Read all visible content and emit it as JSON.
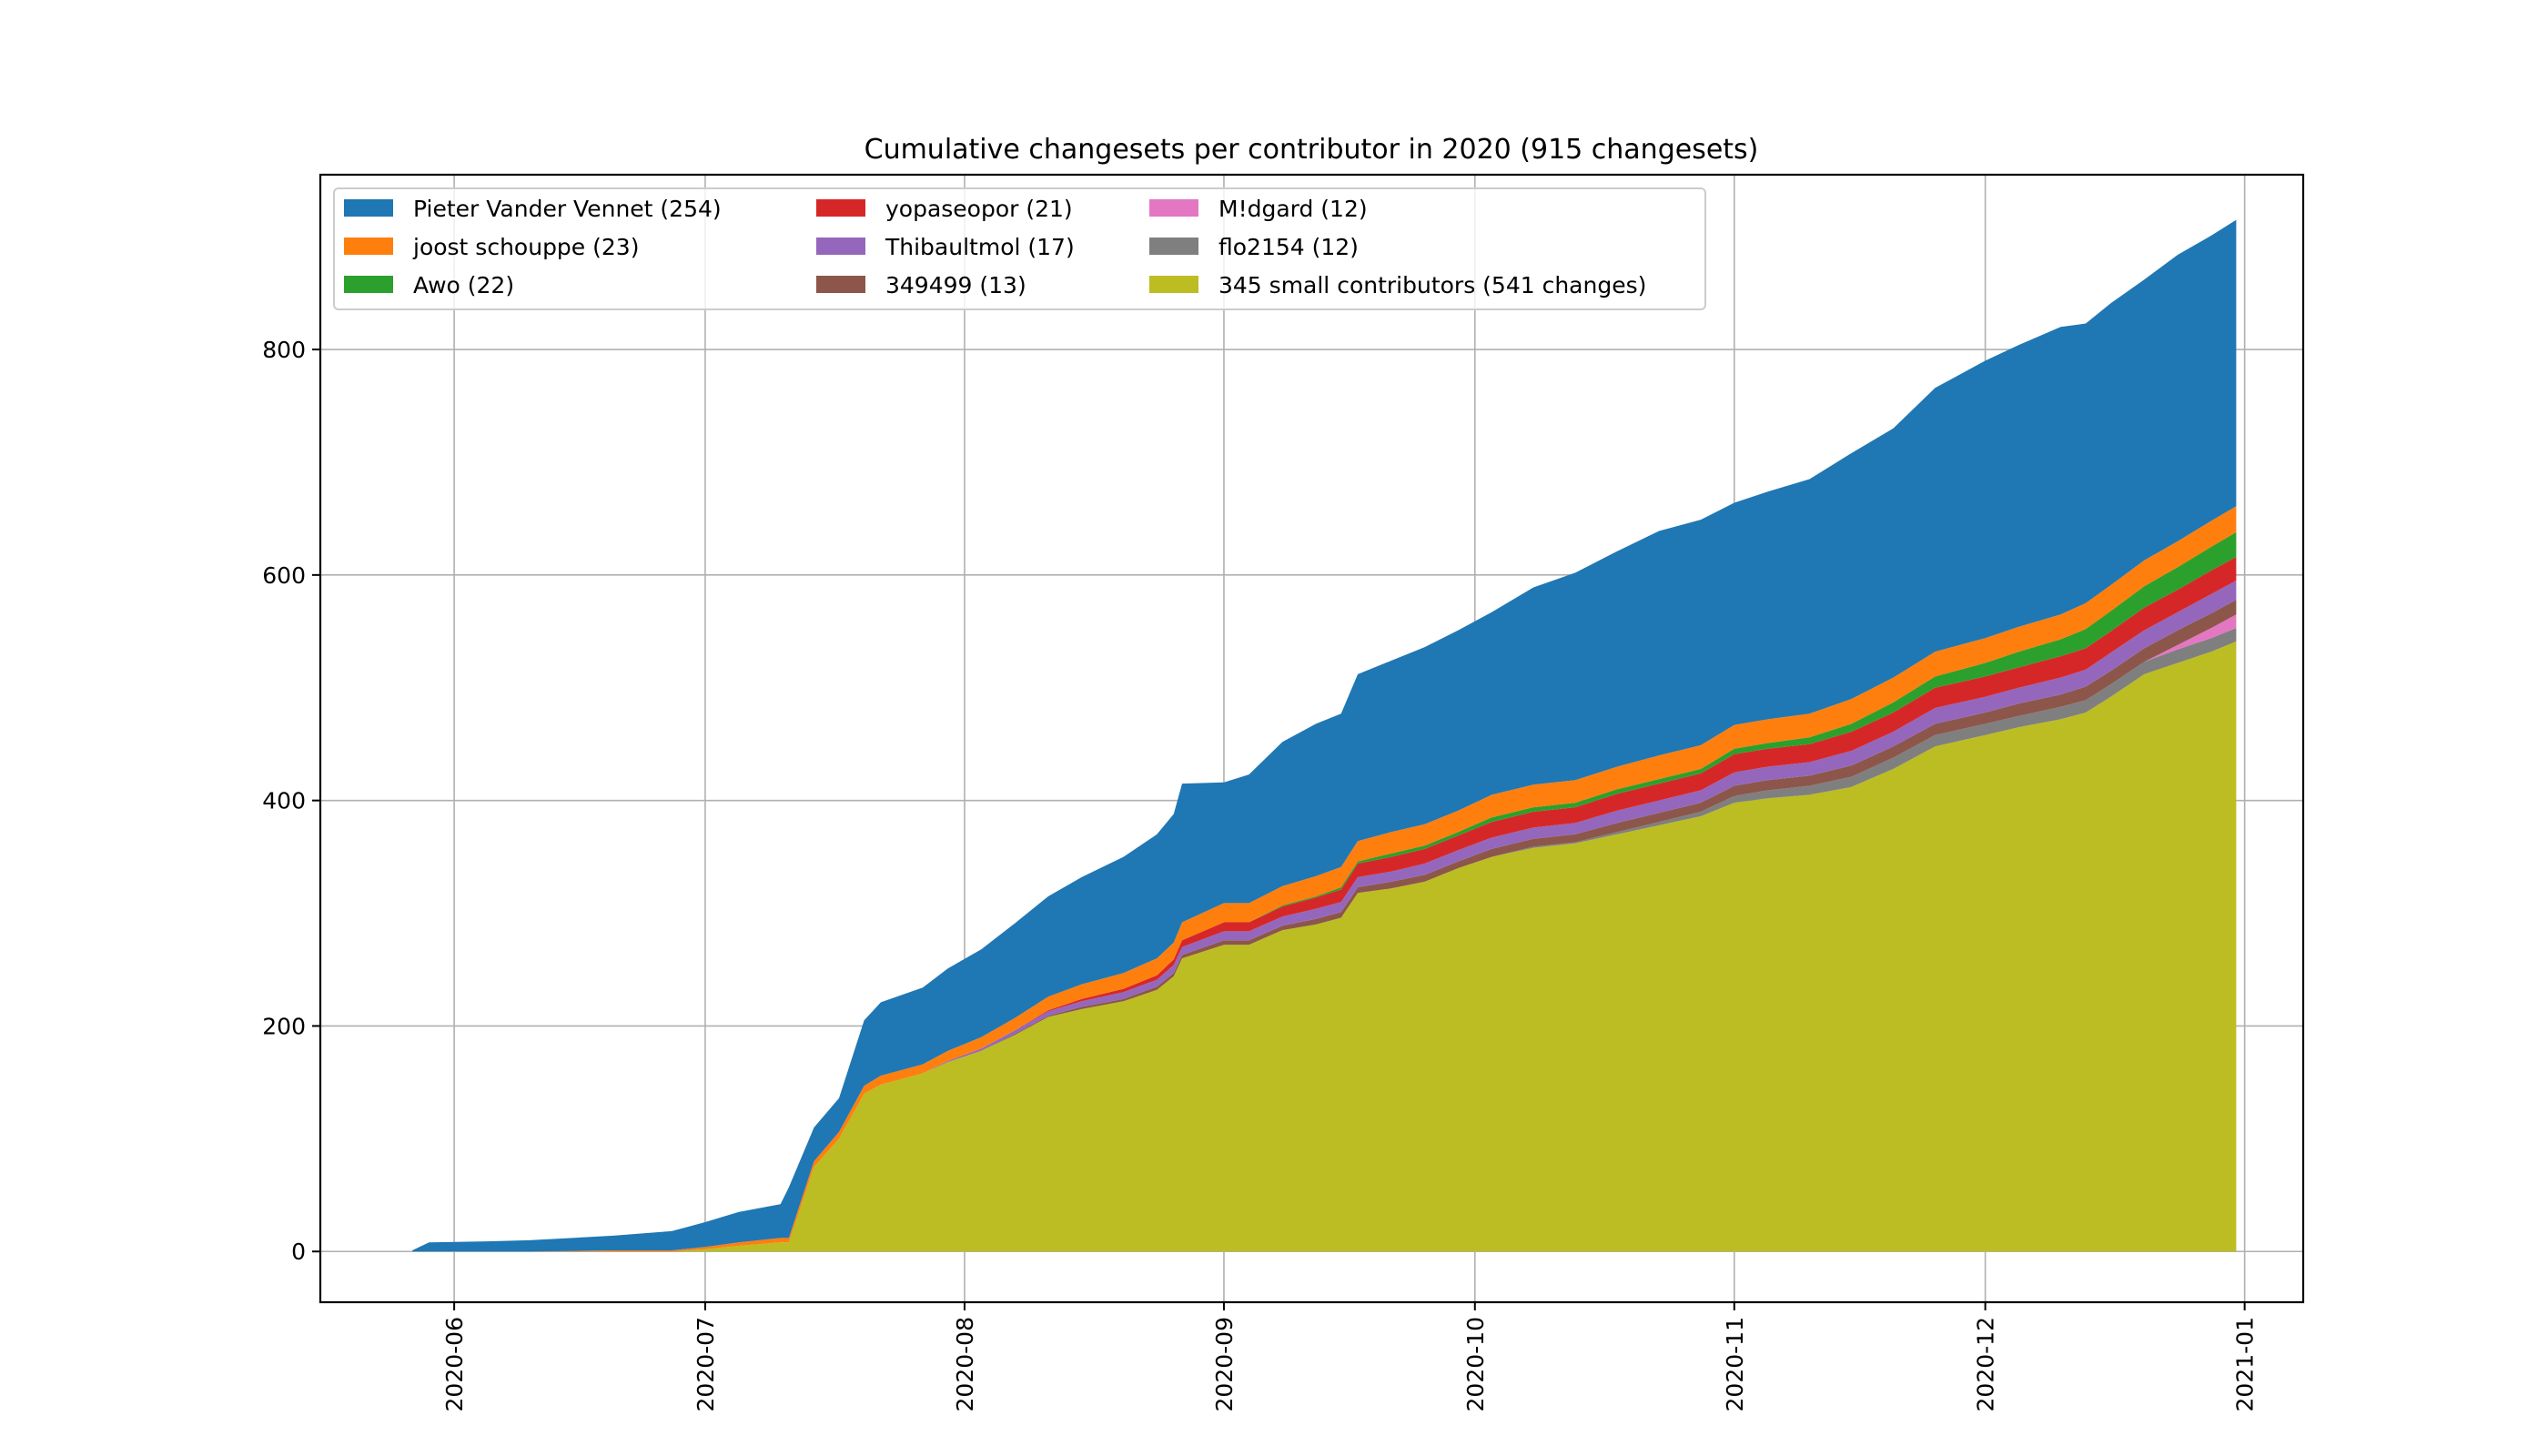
{
  "chart_data": {
    "type": "area",
    "stacked": true,
    "title": "Cumulative changesets per contributor in 2020 (915 changesets)",
    "xlabel": "",
    "ylabel": "",
    "x_type": "date",
    "xlim": [
      "2020-05-16",
      "2021-01-08"
    ],
    "ylim": [
      -45,
      955
    ],
    "grid": true,
    "legend_position": "top-left",
    "legend_columns": 3,
    "x_ticks": [
      "2020-06",
      "2020-07",
      "2020-08",
      "2020-09",
      "2020-10",
      "2020-11",
      "2020-12",
      "2021-01"
    ],
    "x_tick_dates": [
      "2020-06-01",
      "2020-07-01",
      "2020-08-01",
      "2020-09-01",
      "2020-10-01",
      "2020-11-01",
      "2020-12-01",
      "2021-01-01"
    ],
    "y_ticks": [
      0,
      200,
      400,
      600,
      800
    ],
    "x": [
      "2020-05-27",
      "2020-05-29",
      "2020-06-05",
      "2020-06-10",
      "2020-06-20",
      "2020-06-27",
      "2020-07-01",
      "2020-07-05",
      "2020-07-10",
      "2020-07-11",
      "2020-07-14",
      "2020-07-17",
      "2020-07-20",
      "2020-07-22",
      "2020-07-27",
      "2020-07-30",
      "2020-08-03",
      "2020-08-07",
      "2020-08-11",
      "2020-08-15",
      "2020-08-20",
      "2020-08-24",
      "2020-08-26",
      "2020-08-27",
      "2020-09-01",
      "2020-09-04",
      "2020-09-08",
      "2020-09-12",
      "2020-09-15",
      "2020-09-17",
      "2020-09-21",
      "2020-09-25",
      "2020-09-29",
      "2020-10-03",
      "2020-10-08",
      "2020-10-13",
      "2020-10-18",
      "2020-10-23",
      "2020-10-28",
      "2020-11-01",
      "2020-11-05",
      "2020-11-10",
      "2020-11-15",
      "2020-11-20",
      "2020-11-25",
      "2020-12-01",
      "2020-12-05",
      "2020-12-10",
      "2020-12-13",
      "2020-12-16",
      "2020-12-20",
      "2020-12-24",
      "2020-12-28",
      "2020-12-31"
    ],
    "series": [
      {
        "name": "345 small contributors (541 changes)",
        "color": "#bcbd22",
        "values": [
          0,
          0,
          0,
          0,
          0,
          0,
          2,
          5,
          8,
          8,
          75,
          100,
          140,
          148,
          158,
          168,
          178,
          192,
          208,
          215,
          222,
          232,
          244,
          260,
          272,
          272,
          285,
          290,
          296,
          318,
          322,
          328,
          340,
          350,
          358,
          362,
          370,
          378,
          386,
          398,
          402,
          405,
          412,
          428,
          448,
          458,
          465,
          472,
          478,
          492,
          512,
          522,
          532,
          541
        ]
      },
      {
        "name": "flo2154 (12)",
        "color": "#7f7f7f",
        "values": [
          0,
          0,
          0,
          0,
          0,
          0,
          0,
          0,
          0,
          0,
          0,
          0,
          0,
          0,
          0,
          0,
          0,
          0,
          0,
          0,
          0,
          0,
          0,
          0,
          0,
          0,
          0,
          0,
          0,
          0,
          0,
          0,
          0,
          0,
          1,
          1,
          2,
          3,
          4,
          6,
          7,
          8,
          9,
          10,
          10,
          10,
          10,
          11,
          11,
          11,
          11,
          12,
          12,
          12
        ]
      },
      {
        "name": "M!dgard (12)",
        "color": "#e377c2",
        "values": [
          0,
          0,
          0,
          0,
          0,
          0,
          0,
          0,
          0,
          0,
          0,
          0,
          0,
          0,
          0,
          0,
          0,
          0,
          0,
          0,
          0,
          0,
          0,
          0,
          0,
          0,
          0,
          0,
          0,
          0,
          0,
          0,
          0,
          0,
          0,
          0,
          0,
          0,
          0,
          0,
          0,
          0,
          0,
          0,
          0,
          0,
          0,
          0,
          0,
          0,
          0,
          4,
          9,
          12
        ]
      },
      {
        "name": "349499 (13)",
        "color": "#8c564b",
        "values": [
          0,
          0,
          0,
          0,
          0,
          0,
          0,
          0,
          0,
          0,
          0,
          0,
          0,
          0,
          0,
          0,
          0,
          1,
          1,
          2,
          2,
          3,
          3,
          3,
          4,
          4,
          4,
          5,
          5,
          5,
          6,
          6,
          6,
          7,
          7,
          7,
          8,
          8,
          8,
          9,
          9,
          9,
          10,
          10,
          10,
          10,
          11,
          11,
          12,
          12,
          12,
          13,
          13,
          13
        ]
      },
      {
        "name": "Thibaultmol (17)",
        "color": "#9467bd",
        "values": [
          0,
          0,
          0,
          0,
          0,
          0,
          0,
          0,
          0,
          0,
          0,
          0,
          0,
          0,
          0,
          1,
          2,
          3,
          4,
          5,
          6,
          6,
          7,
          7,
          8,
          8,
          8,
          9,
          9,
          9,
          9,
          10,
          10,
          10,
          10,
          10,
          11,
          11,
          11,
          12,
          12,
          12,
          13,
          13,
          14,
          14,
          14,
          15,
          15,
          16,
          16,
          16,
          17,
          17
        ]
      },
      {
        "name": "yopaseopor (21)",
        "color": "#d62728",
        "values": [
          0,
          0,
          0,
          0,
          0,
          0,
          0,
          0,
          0,
          0,
          0,
          0,
          0,
          0,
          0,
          0,
          0,
          0,
          1,
          2,
          3,
          4,
          5,
          6,
          8,
          8,
          9,
          10,
          11,
          12,
          13,
          13,
          13,
          14,
          14,
          14,
          15,
          15,
          15,
          16,
          16,
          16,
          17,
          17,
          18,
          18,
          18,
          19,
          19,
          19,
          20,
          20,
          21,
          21
        ]
      },
      {
        "name": "Awo (22)",
        "color": "#2ca02c",
        "values": [
          0,
          0,
          0,
          0,
          0,
          0,
          0,
          0,
          0,
          0,
          0,
          0,
          0,
          0,
          0,
          0,
          0,
          0,
          0,
          0,
          0,
          0,
          0,
          0,
          0,
          0,
          1,
          1,
          2,
          2,
          3,
          3,
          3,
          4,
          4,
          4,
          4,
          4,
          4,
          5,
          5,
          6,
          7,
          9,
          10,
          12,
          14,
          15,
          17,
          18,
          19,
          20,
          21,
          22
        ]
      },
      {
        "name": "joost schouppe (23)",
        "color": "#ff7f0e",
        "values": [
          0,
          0,
          0,
          0,
          1,
          1,
          2,
          3,
          4,
          4,
          5,
          6,
          7,
          8,
          8,
          9,
          10,
          11,
          12,
          13,
          14,
          15,
          15,
          16,
          17,
          17,
          17,
          18,
          18,
          18,
          19,
          19,
          19,
          20,
          20,
          20,
          20,
          21,
          21,
          21,
          21,
          21,
          22,
          22,
          22,
          22,
          22,
          22,
          23,
          23,
          23,
          23,
          23,
          23
        ]
      },
      {
        "name": "Pieter Vander Vennet (254)",
        "color": "#1f77b4",
        "values": [
          1,
          8,
          9,
          10,
          13,
          17,
          22,
          27,
          30,
          45,
          30,
          30,
          58,
          65,
          68,
          73,
          78,
          84,
          89,
          95,
          103,
          110,
          114,
          123,
          107,
          114,
          128,
          135,
          136,
          148,
          152,
          157,
          160,
          162,
          175,
          184,
          191,
          199,
          200,
          197,
          202,
          208,
          218,
          221,
          234,
          246,
          250,
          255,
          248,
          250,
          249,
          254,
          253,
          254
        ]
      }
    ]
  }
}
